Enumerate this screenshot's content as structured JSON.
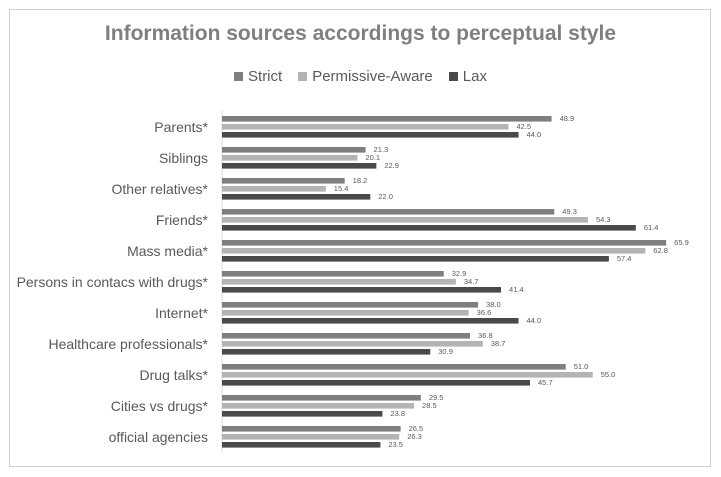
{
  "chart_data": {
    "type": "bar",
    "orientation": "horizontal",
    "title": "Information sources accordings to perceptual style",
    "categories": [
      "Parents*",
      "Siblings",
      "Other relatives*",
      "Friends*",
      "Mass media*",
      "Persons in contacs with drugs*",
      "Internet*",
      "Healthcare professionals*",
      "Drug talks*",
      "Cities vs drugs*",
      "official agencies"
    ],
    "series": [
      {
        "name": "Strict",
        "color": "#7f7f7f",
        "values": [
          48.9,
          21.3,
          18.2,
          49.3,
          65.9,
          32.9,
          38.0,
          36.8,
          51.0,
          29.5,
          26.5
        ]
      },
      {
        "name": "Permissive-Aware",
        "color": "#b4b4b4",
        "values": [
          42.5,
          20.1,
          15.4,
          54.3,
          62.8,
          34.7,
          36.6,
          38.7,
          55.0,
          28.5,
          26.3
        ]
      },
      {
        "name": "Lax",
        "color": "#4a4a4a",
        "values": [
          44.0,
          22.9,
          22.0,
          61.4,
          57.4,
          41.4,
          44.0,
          30.9,
          45.7,
          23.8,
          23.5
        ]
      }
    ],
    "value_axis_range": [
      0,
      70
    ],
    "legend_position": "top",
    "grid": false,
    "data_labels": true
  }
}
